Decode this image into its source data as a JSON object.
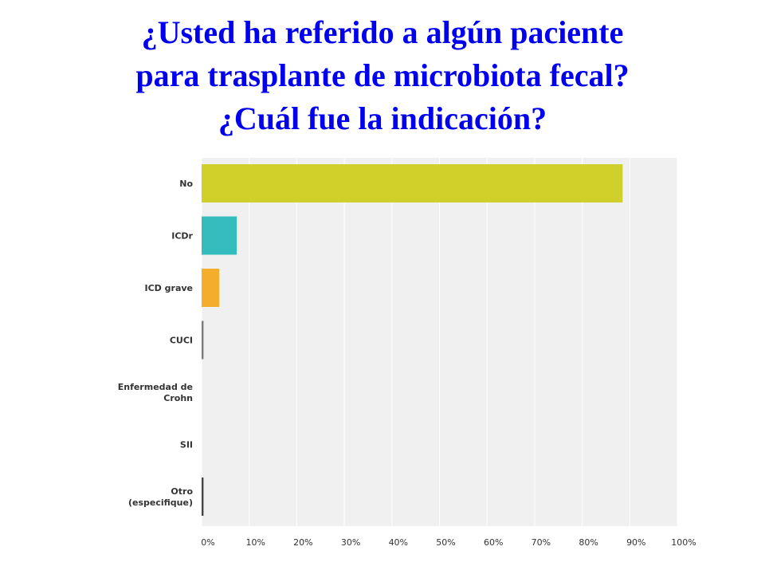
{
  "title_lines": [
    "¿Usted ha referido a algún paciente",
    "para trasplante de microbiota fecal?",
    "¿Cuál fue la indicación?"
  ],
  "colors": {
    "title": "#0000ee",
    "plot_background": "#f0f0f0",
    "gridline": "#ffffff"
  },
  "chart_data": {
    "type": "bar",
    "orientation": "horizontal",
    "title": "¿Usted ha referido a algún paciente para trasplante de microbiota fecal? ¿Cuál fue la indicación?",
    "categories": [
      [
        "No"
      ],
      [
        "ICDr"
      ],
      [
        "ICD grave"
      ],
      [
        "CUCI"
      ],
      [
        "Enfermedad de",
        "Crohn"
      ],
      [
        "SII"
      ],
      [
        "Otro",
        "(especifique)"
      ]
    ],
    "values": [
      88.5,
      7.4,
      3.7,
      0.4,
      0,
      0,
      0.4
    ],
    "bar_colors": [
      "#cfd12a",
      "#35bcbc",
      "#f5ae2c",
      "#7c7c7c",
      "#7c7c7c",
      "#7c7c7c",
      "#444444"
    ],
    "xlim": [
      0,
      100
    ],
    "x_ticks": [
      "0%",
      "10%",
      "20%",
      "30%",
      "40%",
      "50%",
      "60%",
      "70%",
      "80%",
      "90%",
      "100%"
    ],
    "grid": true,
    "xlabel": "",
    "ylabel": ""
  }
}
